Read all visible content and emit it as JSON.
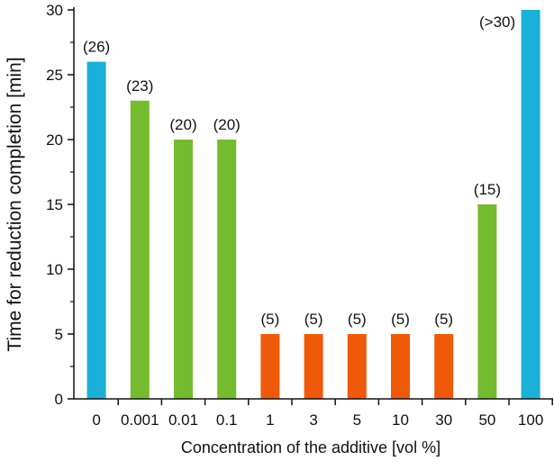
{
  "chart_data": {
    "type": "bar",
    "title": "",
    "xlabel": "Concentration of the additive [vol %]",
    "ylabel": "Time for reduction completion [min]",
    "ylim": [
      0,
      30
    ],
    "yticks": [
      0,
      5,
      10,
      15,
      20,
      25,
      30
    ],
    "grid": false,
    "categories": [
      "0",
      "0.001",
      "0.01",
      "0.1",
      "1",
      "3",
      "5",
      "10",
      "30",
      "50",
      "100"
    ],
    "values": [
      26,
      23,
      20,
      20,
      5,
      5,
      5,
      5,
      5,
      15,
      30
    ],
    "data_labels": [
      "(26)",
      "(23)",
      "(20)",
      "(20)",
      "(5)",
      "(5)",
      "(5)",
      "(5)",
      "(5)",
      "(15)",
      "(>30)"
    ],
    "bar_colors": [
      "#1ab0d8",
      "#74bb2f",
      "#74bb2f",
      "#74bb2f",
      "#ef5a0a",
      "#ef5a0a",
      "#ef5a0a",
      "#ef5a0a",
      "#ef5a0a",
      "#74bb2f",
      "#1ab0d8"
    ]
  }
}
